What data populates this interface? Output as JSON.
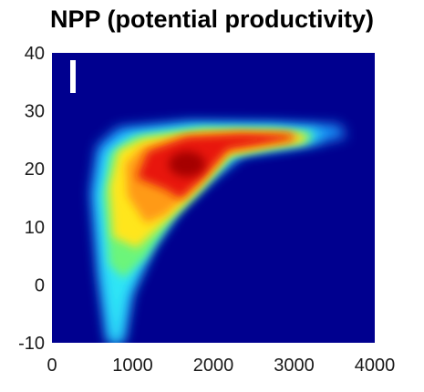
{
  "chart_data": {
    "type": "heatmap",
    "title": "NPP (potential productivity)",
    "panel_label": "I",
    "xlabel": "",
    "ylabel": "",
    "xlim": [
      0,
      4000
    ],
    "ylim": [
      -10,
      40
    ],
    "x_ticks": [
      0,
      1000,
      2000,
      3000,
      4000
    ],
    "y_ticks": [
      -10,
      0,
      10,
      20,
      30,
      40
    ],
    "x_tick_labels": [
      "0",
      "1000",
      "2000",
      "3000",
      "4000"
    ],
    "y_tick_labels": [
      "-10",
      "0",
      "10",
      "20",
      "30",
      "40"
    ],
    "colormap": "jet",
    "background_color": "#00008f",
    "grid": false,
    "density_hotspots": [
      {
        "x": 1900,
        "y": 22.5,
        "intensity": 1.0
      },
      {
        "x": 1600,
        "y": 19.0,
        "intensity": 0.95
      },
      {
        "x": 2400,
        "y": 25.0,
        "intensity": 0.9
      },
      {
        "x": 2900,
        "y": 25.5,
        "intensity": 0.82
      },
      {
        "x": 1200,
        "y": 12.0,
        "intensity": 0.7
      },
      {
        "x": 1100,
        "y": 21.0,
        "intensity": 0.72
      },
      {
        "x": 900,
        "y": 6.0,
        "intensity": 0.45
      },
      {
        "x": 750,
        "y": -3.0,
        "intensity": 0.28
      }
    ]
  }
}
